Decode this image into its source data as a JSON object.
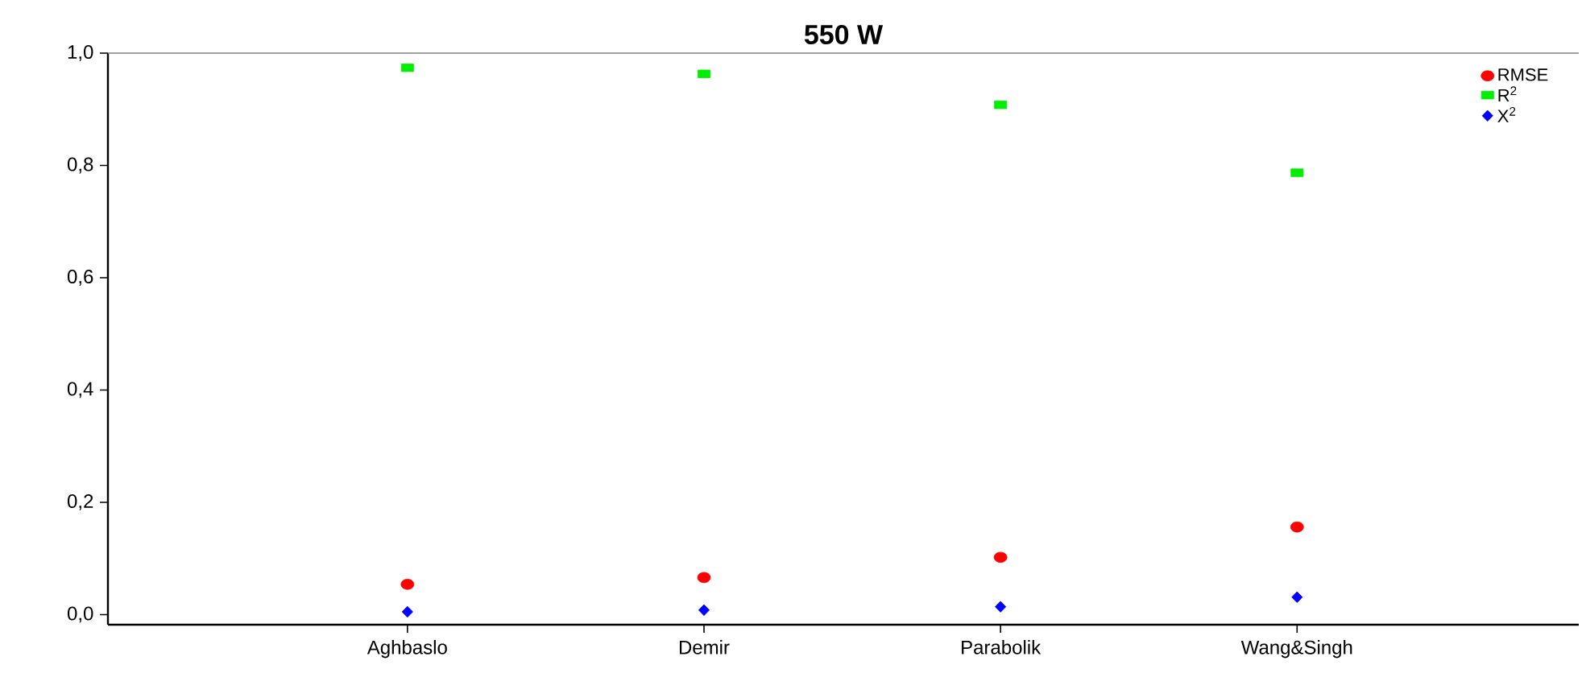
{
  "chart_data": {
    "type": "scatter",
    "title": "550 W",
    "categories": [
      "Aghbaslo",
      "Demir",
      "Parabolik",
      "Wang&Singh"
    ],
    "series": [
      {
        "name": "RMSE",
        "color": "#ff0000",
        "marker": "circle",
        "values": [
          0.054,
          0.066,
          0.102,
          0.156
        ]
      },
      {
        "name": "R$^{2}$",
        "color": "#00ee00",
        "marker": "square",
        "values": [
          0.974,
          0.963,
          0.908,
          0.787
        ]
      },
      {
        "name": "X$^{2}$",
        "color": "#0000ff",
        "marker": "diamond",
        "values": [
          0.005,
          0.008,
          0.014,
          0.031
        ]
      }
    ],
    "ylim": [
      -0.018,
      1.0
    ],
    "yticks": [
      {
        "value": 0,
        "label": "0,0"
      },
      {
        "value": 0.2,
        "label": "0,2"
      },
      {
        "value": 0.4,
        "label": "0,4"
      },
      {
        "value": 0.6,
        "label": "0,6"
      },
      {
        "value": 0.8,
        "label": "0,8"
      },
      {
        "value": 1.0,
        "label": "1,0"
      }
    ],
    "legend": "top right",
    "grid": false
  }
}
